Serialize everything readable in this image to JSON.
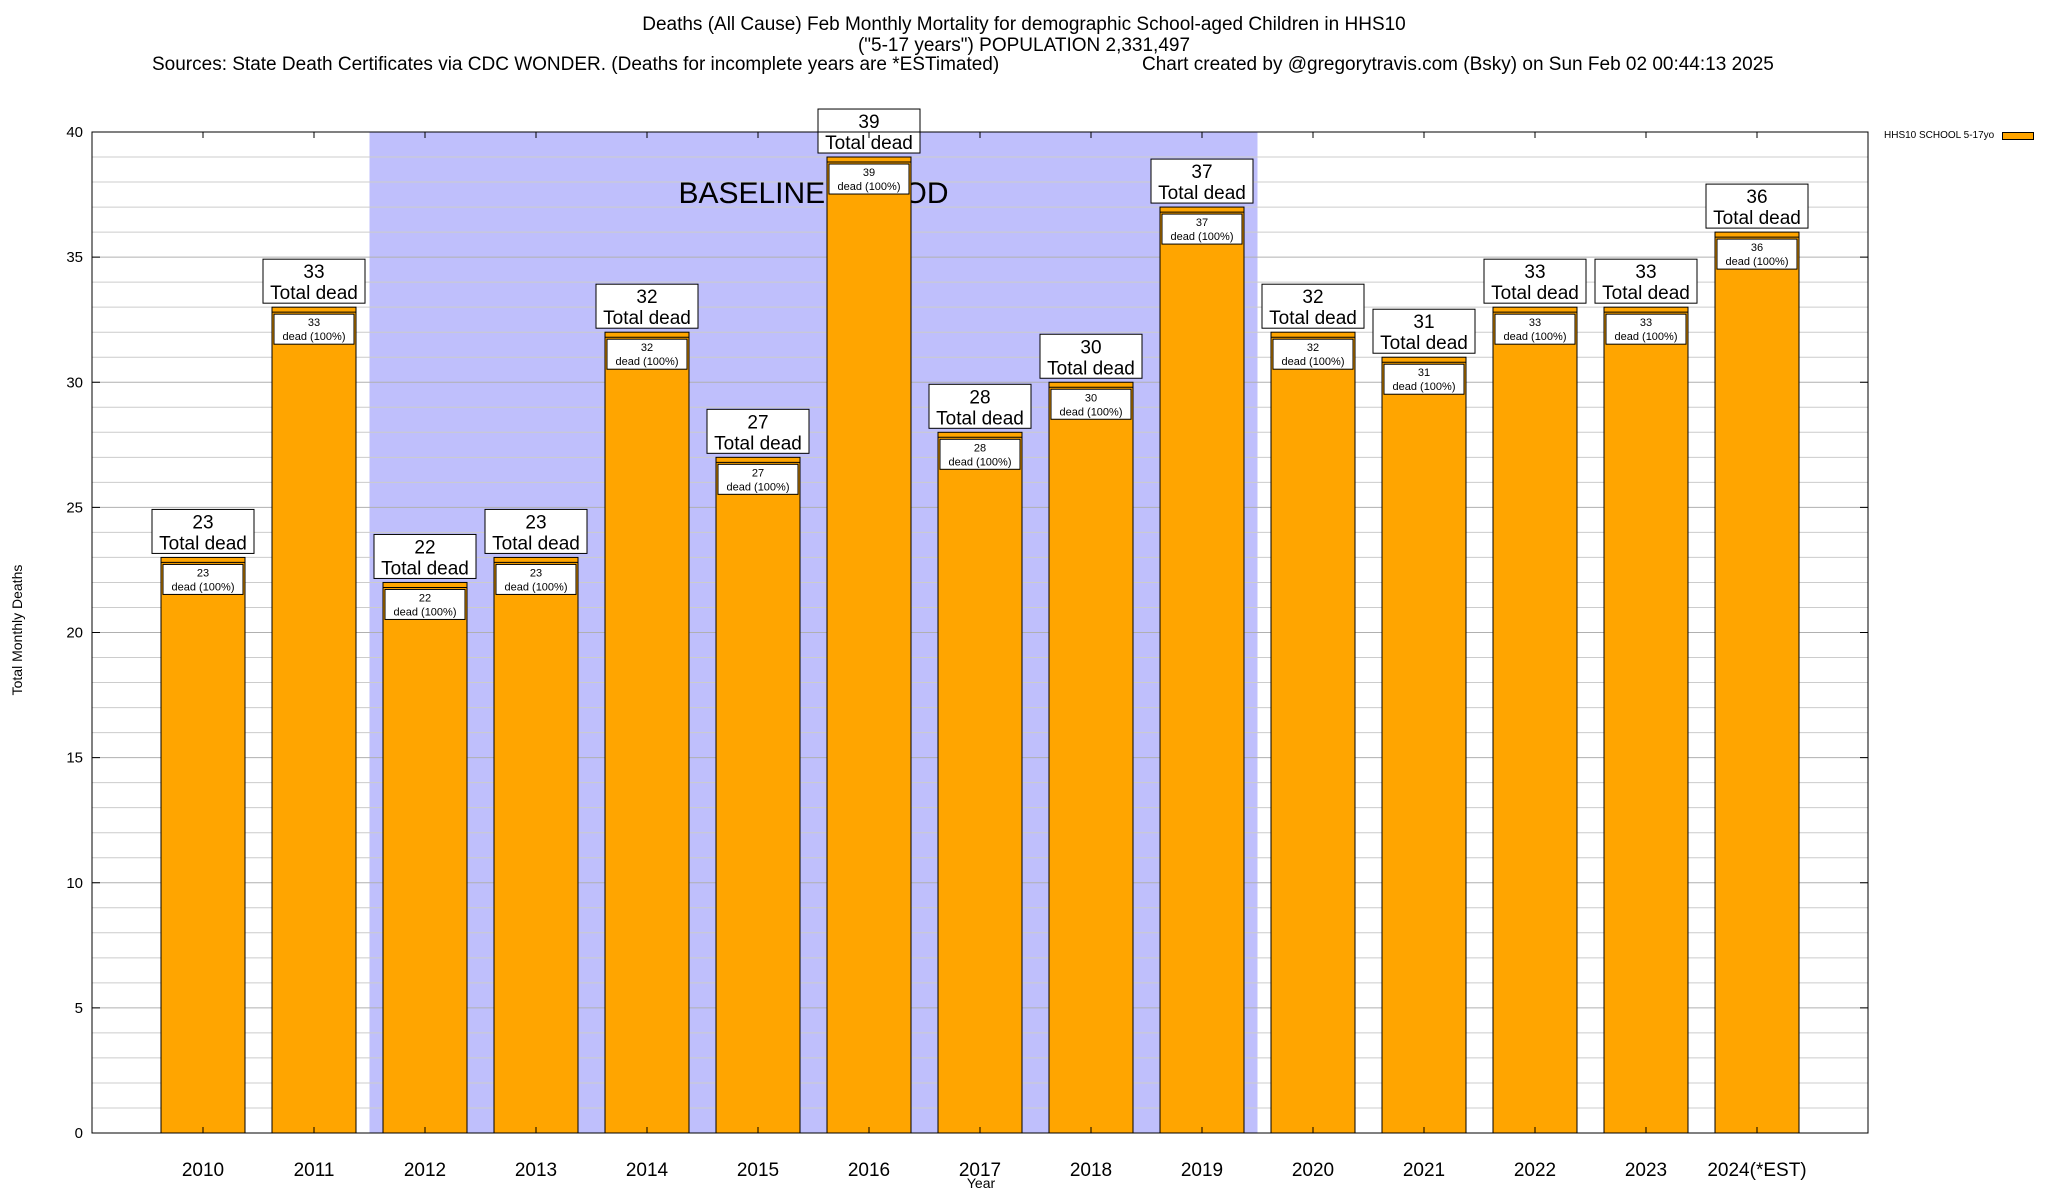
{
  "title_lines": [
    "Deaths (All Cause) Feb Monthly Mortality for demographic School-aged Children in HHS10",
    "(\"5-17 years\") POPULATION 2,331,497"
  ],
  "sources": "Sources: State Death Certificates via CDC WONDER. (Deaths for incomplete years are *ESTimated)",
  "credit": "Chart created by @gregorytravis.com (Bsky) on Sun Feb 02 00:44:13 2025",
  "colors": {
    "bar": "#ffa500",
    "baseline_shade": "#bfbffc",
    "grid": "#cccccc"
  },
  "chart_data": {
    "type": "bar",
    "categories": [
      "2010",
      "2011",
      "2012",
      "2013",
      "2014",
      "2015",
      "2016",
      "2017",
      "2018",
      "2019",
      "2020",
      "2021",
      "2022",
      "2023",
      "2024(*EST)"
    ],
    "values": [
      23,
      33,
      22,
      23,
      32,
      27,
      39,
      28,
      30,
      37,
      32,
      31,
      33,
      33,
      36
    ],
    "series": [
      {
        "name": "HHS10 SCHOOL 5-17yo",
        "values": [
          23,
          33,
          22,
          23,
          32,
          27,
          39,
          28,
          30,
          37,
          32,
          31,
          33,
          33,
          36
        ]
      }
    ],
    "xlabel": "Year",
    "ylabel": "Total Monthly Deaths",
    "ylim": [
      0,
      40
    ],
    "yticks": [
      0,
      5,
      10,
      15,
      20,
      25,
      30,
      35,
      40
    ],
    "grid": true,
    "legend_placement": "top-right",
    "label_total_suffix": "Total dead",
    "label_inner_suffix": "dead (100%)",
    "baseline": {
      "label": "BASELINE PERIOD",
      "from": "2012",
      "to": "2019"
    }
  }
}
